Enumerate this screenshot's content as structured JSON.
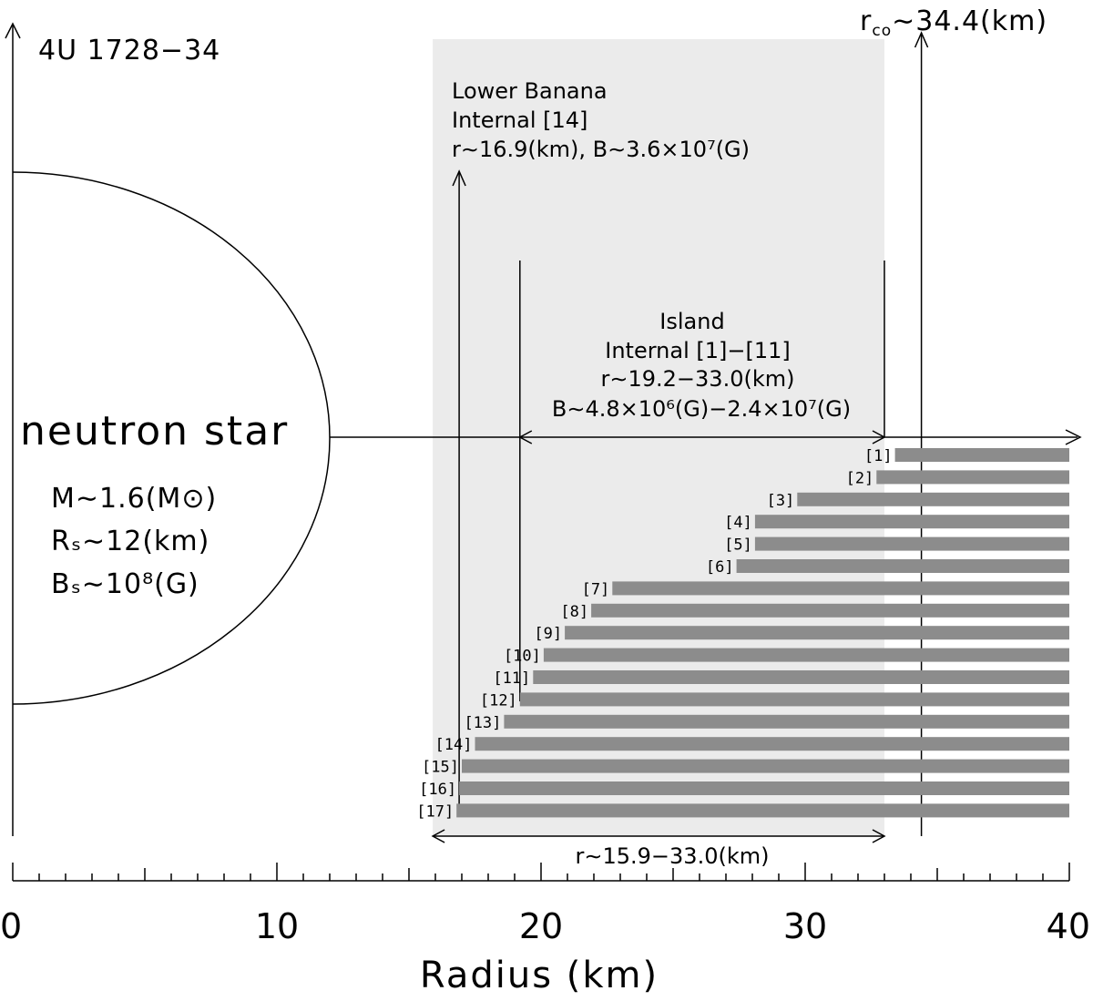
{
  "chart_data": {
    "type": "bar",
    "title": "4U 1728−34",
    "xlabel": "Radius (km)",
    "xlim": [
      0,
      40
    ],
    "xticks": [
      "0",
      "10",
      "20",
      "30",
      "40"
    ],
    "minor_tick_step_km": 1,
    "bars": [
      {
        "label": "[1]",
        "start": 33.4,
        "end": 40
      },
      {
        "label": "[2]",
        "start": 32.7,
        "end": 40
      },
      {
        "label": "[3]",
        "start": 29.7,
        "end": 40
      },
      {
        "label": "[4]",
        "start": 28.1,
        "end": 40
      },
      {
        "label": "[5]",
        "start": 28.1,
        "end": 40
      },
      {
        "label": "[6]",
        "start": 27.4,
        "end": 40
      },
      {
        "label": "[7]",
        "start": 22.7,
        "end": 40
      },
      {
        "label": "[8]",
        "start": 21.9,
        "end": 40
      },
      {
        "label": "[9]",
        "start": 20.9,
        "end": 40
      },
      {
        "label": "[10]",
        "start": 20.1,
        "end": 40
      },
      {
        "label": "[11]",
        "start": 19.7,
        "end": 40
      },
      {
        "label": "[12]",
        "start": 19.2,
        "end": 40
      },
      {
        "label": "[13]",
        "start": 18.6,
        "end": 40
      },
      {
        "label": "[14]",
        "start": 17.5,
        "end": 40
      },
      {
        "label": "[15]",
        "start": 17.0,
        "end": 40
      },
      {
        "label": "[16]",
        "start": 16.9,
        "end": 40
      },
      {
        "label": "[17]",
        "start": 16.8,
        "end": 40
      }
    ],
    "shaded_region": {
      "start": 15.9,
      "end": 33.0
    },
    "neutron_star": {
      "label": "neutron star",
      "radius_km": 12,
      "params": [
        "M∼1.6(M⊙)",
        "Rₛ∼12(km)",
        "Bₛ∼10⁸(G)"
      ]
    },
    "corotation": {
      "value": 34.4,
      "label_r": "r",
      "label_sub": "co",
      "label_rest": "∼34.4(km)"
    },
    "lower_banana": {
      "marker_r": 16.9,
      "lines": [
        "Lower Banana",
        "Internal [14]",
        "r∼16.9(km), B∼3.6×10⁷(G)"
      ]
    },
    "island": {
      "range": [
        19.2,
        33.0
      ],
      "lines": [
        "Island",
        "Internal [1]−[11]",
        "r∼19.2−33.0(km)",
        "B∼4.8×10⁶(G)−2.4×10⁷(G)"
      ]
    },
    "range_annotation": "r∼15.9−33.0(km)"
  },
  "colors": {
    "bar": "#8c8c8c",
    "shade": "#ebebeb",
    "line": "#000000"
  }
}
